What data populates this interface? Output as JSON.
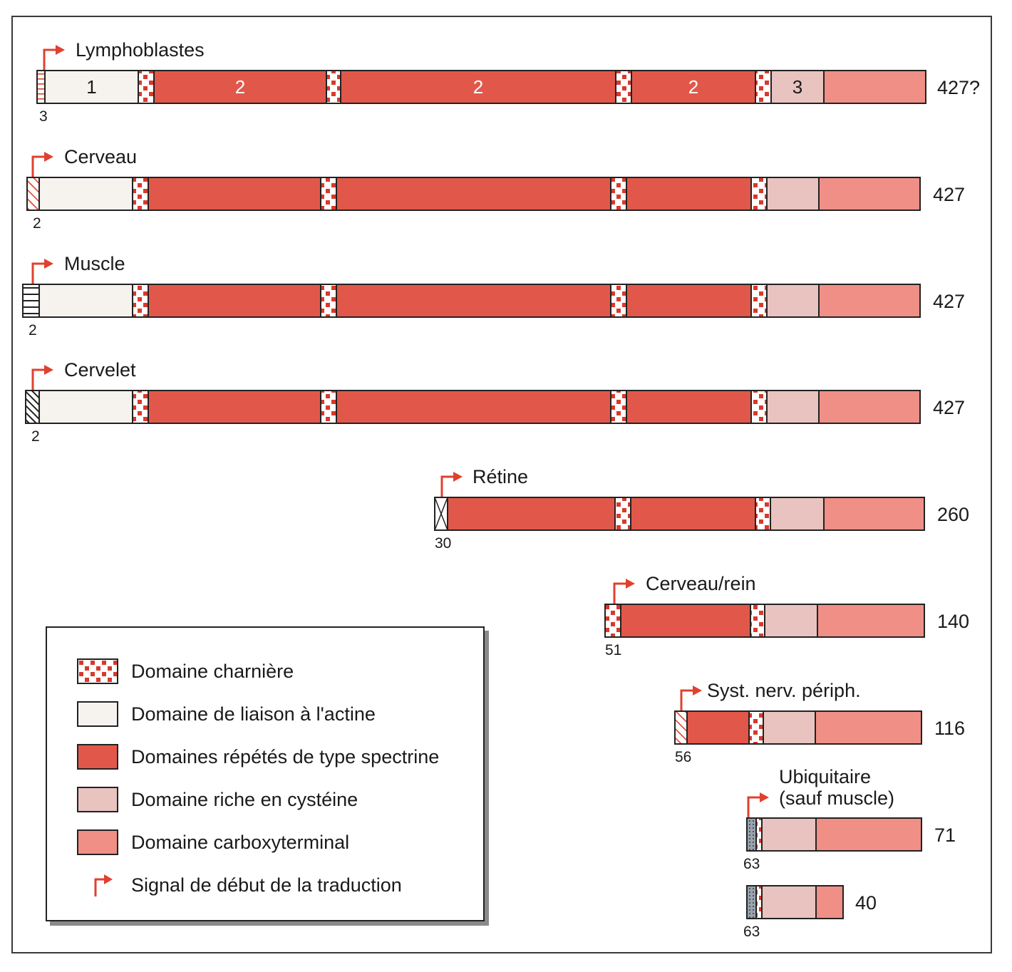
{
  "colors": {
    "actin": "#f6f3ef",
    "spectrin": "#e1584a",
    "cysteine": "#e9c3bf",
    "carboxy": "#ef8f86",
    "hinge_dot": "#d8392b",
    "arrow": "#e0412f",
    "outline": "#222222"
  },
  "isoforms": [
    {
      "name": "Lymphoblastes",
      "size": "427?",
      "exon": "3",
      "start_pattern": "hlines-red",
      "segments": [
        {
          "type": "actin",
          "label": "1"
        },
        {
          "type": "hinge"
        },
        {
          "type": "spectrin",
          "label": "2"
        },
        {
          "type": "hinge"
        },
        {
          "type": "spectrin",
          "label": "2"
        },
        {
          "type": "hinge"
        },
        {
          "type": "spectrin",
          "label": "2"
        },
        {
          "type": "hinge"
        },
        {
          "type": "cysteine",
          "label": "3"
        },
        {
          "type": "carboxy"
        }
      ]
    },
    {
      "name": "Cerveau",
      "size": "427",
      "exon": "2",
      "start_pattern": "diag-red",
      "segments": [
        {
          "type": "actin"
        },
        {
          "type": "hinge"
        },
        {
          "type": "spectrin"
        },
        {
          "type": "hinge"
        },
        {
          "type": "spectrin"
        },
        {
          "type": "hinge"
        },
        {
          "type": "spectrin"
        },
        {
          "type": "hinge"
        },
        {
          "type": "cysteine"
        },
        {
          "type": "carboxy"
        }
      ]
    },
    {
      "name": "Muscle",
      "size": "427",
      "exon": "2",
      "start_pattern": "hlines-dark",
      "segments": [
        {
          "type": "actin"
        },
        {
          "type": "hinge"
        },
        {
          "type": "spectrin"
        },
        {
          "type": "hinge"
        },
        {
          "type": "spectrin"
        },
        {
          "type": "hinge"
        },
        {
          "type": "spectrin"
        },
        {
          "type": "hinge"
        },
        {
          "type": "cysteine"
        },
        {
          "type": "carboxy"
        }
      ]
    },
    {
      "name": "Cervelet",
      "size": "427",
      "exon": "2",
      "start_pattern": "diag-dark",
      "segments": [
        {
          "type": "actin"
        },
        {
          "type": "hinge"
        },
        {
          "type": "spectrin"
        },
        {
          "type": "hinge"
        },
        {
          "type": "spectrin"
        },
        {
          "type": "hinge"
        },
        {
          "type": "spectrin"
        },
        {
          "type": "hinge"
        },
        {
          "type": "cysteine"
        },
        {
          "type": "carboxy"
        }
      ]
    },
    {
      "name": "Rétine",
      "size": "260",
      "exon": "30",
      "start_pattern": "cross",
      "segments": [
        {
          "type": "spectrin"
        },
        {
          "type": "hinge"
        },
        {
          "type": "spectrin"
        },
        {
          "type": "hinge"
        },
        {
          "type": "cysteine"
        },
        {
          "type": "carboxy"
        }
      ]
    },
    {
      "name": "Cerveau/rein",
      "size": "140",
      "exon": "51",
      "start_pattern": "hinge",
      "segments": [
        {
          "type": "spectrin"
        },
        {
          "type": "hinge"
        },
        {
          "type": "cysteine"
        },
        {
          "type": "carboxy"
        }
      ]
    },
    {
      "name": "Syst. nerv. périph.",
      "size": "116",
      "exon": "56",
      "start_pattern": "diag-red",
      "segments": [
        {
          "type": "spectrin"
        },
        {
          "type": "hinge"
        },
        {
          "type": "cysteine"
        },
        {
          "type": "carboxy"
        }
      ]
    },
    {
      "name_lines": [
        "Ubiquitaire",
        "(sauf muscle)"
      ],
      "size": "71",
      "exon": "63",
      "start_pattern": "grey-dots",
      "segments": [
        {
          "type": "hinge"
        },
        {
          "type": "cysteine"
        },
        {
          "type": "carboxy"
        }
      ]
    },
    {
      "size": "40",
      "exon": "63",
      "start_pattern": "grey-dots",
      "segments": [
        {
          "type": "hinge"
        },
        {
          "type": "cysteine"
        },
        {
          "type": "carboxy"
        }
      ]
    }
  ],
  "legend": {
    "items": [
      {
        "type": "hinge",
        "label": "Domaine charnière"
      },
      {
        "type": "actin",
        "label": "Domaine de liaison à l'actine"
      },
      {
        "type": "spectrin",
        "label": "Domaines répétés de type spectrine"
      },
      {
        "type": "cysteine",
        "label": "Domaine riche en cystéine"
      },
      {
        "type": "carboxy",
        "label": "Domaine carboxyterminal"
      },
      {
        "type": "arrow",
        "label": "Signal de début de la traduction"
      }
    ]
  }
}
